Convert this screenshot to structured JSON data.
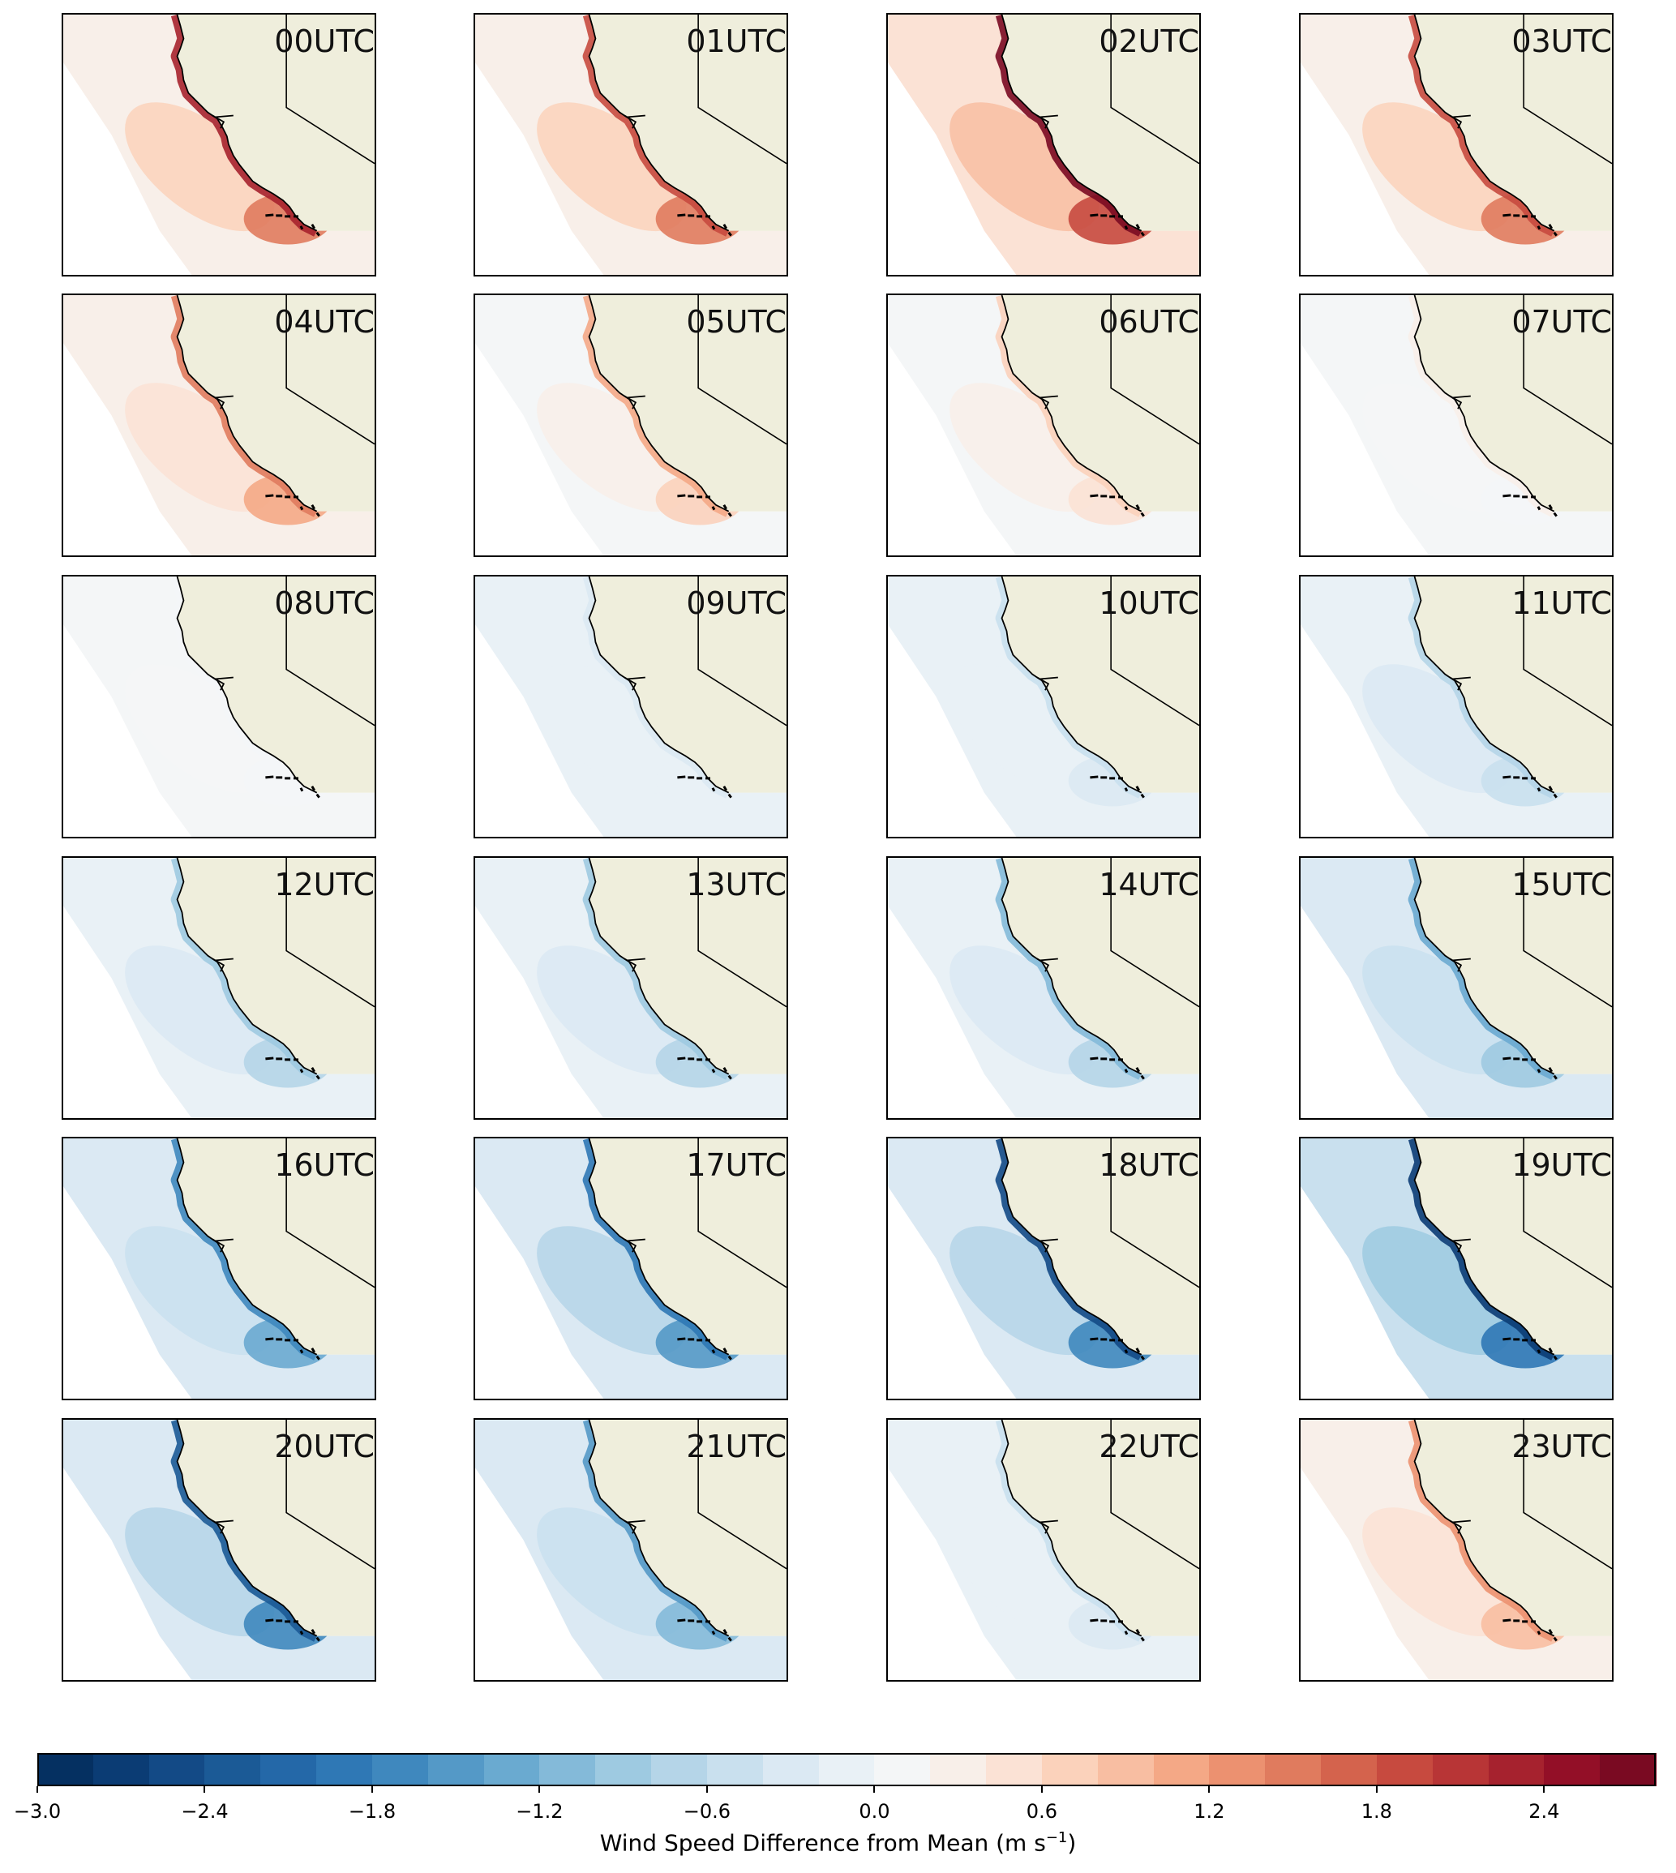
{
  "panels": [
    {
      "label": "00UTC",
      "anomaly": 1.0
    },
    {
      "label": "01UTC",
      "anomaly": 0.9
    },
    {
      "label": "02UTC",
      "anomaly": 1.2
    },
    {
      "label": "03UTC",
      "anomaly": 0.9
    },
    {
      "label": "04UTC",
      "anomaly": 0.7
    },
    {
      "label": "05UTC",
      "anomaly": 0.5
    },
    {
      "label": "06UTC",
      "anomaly": 0.3
    },
    {
      "label": "07UTC",
      "anomaly": 0.1
    },
    {
      "label": "08UTC",
      "anomaly": 0.0
    },
    {
      "label": "09UTC",
      "anomaly": -0.1
    },
    {
      "label": "10UTC",
      "anomaly": -0.2
    },
    {
      "label": "11UTC",
      "anomaly": -0.3
    },
    {
      "label": "12UTC",
      "anomaly": -0.4
    },
    {
      "label": "13UTC",
      "anomaly": -0.4
    },
    {
      "label": "14UTC",
      "anomaly": -0.5
    },
    {
      "label": "15UTC",
      "anomaly": -0.6
    },
    {
      "label": "16UTC",
      "anomaly": -0.8
    },
    {
      "label": "17UTC",
      "anomaly": -0.9
    },
    {
      "label": "18UTC",
      "anomaly": -1.1
    },
    {
      "label": "19UTC",
      "anomaly": -1.2
    },
    {
      "label": "20UTC",
      "anomaly": -1.0
    },
    {
      "label": "21UTC",
      "anomaly": -0.7
    },
    {
      "label": "22UTC",
      "anomaly": -0.2
    },
    {
      "label": "23UTC",
      "anomaly": 0.6
    }
  ],
  "colorbar": {
    "min": -3.0,
    "max": 2.8,
    "step": 0.2,
    "ticks": [
      {
        "value": -3.0,
        "label": "−3.0"
      },
      {
        "value": -2.4,
        "label": "−2.4"
      },
      {
        "value": -1.8,
        "label": "−1.8"
      },
      {
        "value": -1.2,
        "label": "−1.2"
      },
      {
        "value": -0.6,
        "label": "−0.6"
      },
      {
        "value": 0.0,
        "label": "0.0"
      },
      {
        "value": 0.6,
        "label": "0.6"
      },
      {
        "value": 1.2,
        "label": "1.2"
      },
      {
        "value": 1.8,
        "label": "1.8"
      },
      {
        "value": 2.4,
        "label": "2.4"
      }
    ],
    "title": "Wind Speed Difference from Mean (m s",
    "title_superscript": "−1",
    "title_end": ")"
  },
  "colors": {
    "land": "#efeedc",
    "ocean_background": "#ffffff",
    "colormap": [
      "#053061",
      "#0b3c74",
      "#134a86",
      "#1b5a96",
      "#2468a8",
      "#2f78b5",
      "#3f88be",
      "#5499c7",
      "#6aaad0",
      "#84bad9",
      "#9ecae1",
      "#b5d5e8",
      "#c9e0ee",
      "#dbe9f3",
      "#e9f1f6",
      "#f4f6f7",
      "#f8efe9",
      "#fbe2d5",
      "#fbd2bb",
      "#f8bea2",
      "#f4a886",
      "#ec9170",
      "#e07b5e",
      "#d4634d",
      "#c74a3f",
      "#b83536",
      "#a6222e",
      "#930f27",
      "#7a0a22"
    ]
  }
}
